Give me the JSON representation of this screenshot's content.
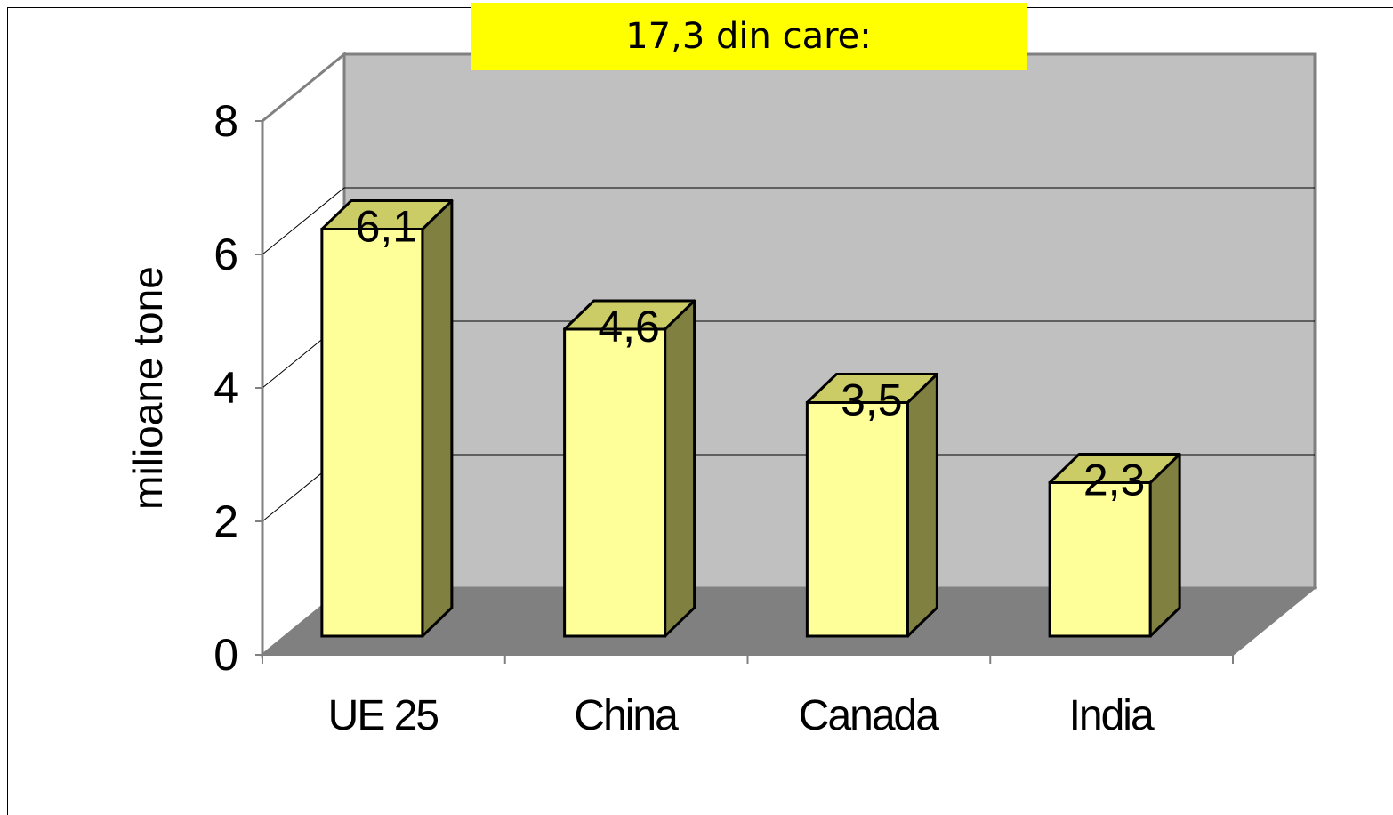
{
  "chart_data": {
    "type": "bar",
    "style": "3d-column",
    "title": "17,3 din care:",
    "ylabel": "milioane tone",
    "xlabel": "",
    "categories": [
      "UE 25",
      "China",
      "Canada",
      "India"
    ],
    "values": [
      6.1,
      4.6,
      3.5,
      2.3
    ],
    "data_labels": [
      "6,1",
      "4,6",
      "3,5",
      "2,3"
    ],
    "ylim": [
      0,
      8
    ],
    "yticks": [
      0,
      2,
      4,
      6,
      8
    ],
    "ytick_labels": [
      "0",
      "2",
      "4",
      "6",
      "8"
    ],
    "grid": true,
    "legend": "none"
  },
  "colors": {
    "title_background": "#ffff00",
    "back_wall": "#c0c0c0",
    "floor": "#808080",
    "bar_front": "#ffff99",
    "bar_top": "#cccc66",
    "bar_side": "#808040",
    "gridline": "#000000"
  }
}
